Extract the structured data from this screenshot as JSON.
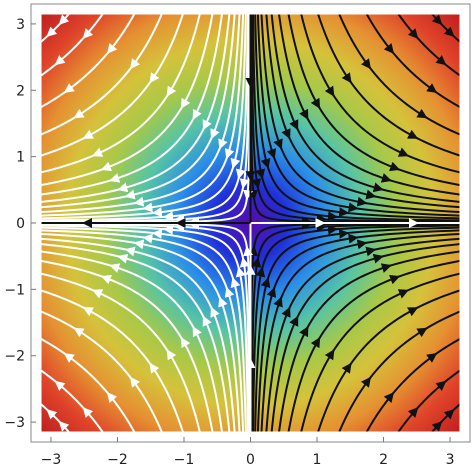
{
  "chart_data": {
    "type": "stream-density",
    "field": "v = (x, -y)",
    "density": "sqrt(x^2 + y^2)",
    "xlim": [
      -3.3,
      3.3
    ],
    "ylim": [
      -3.3,
      3.3
    ],
    "region": [
      -3.14159,
      3.14159
    ],
    "x_ticks": [
      -3,
      -2,
      -1,
      0,
      1,
      2,
      3
    ],
    "y_ticks": [
      -3,
      -2,
      -1,
      0,
      1,
      2,
      3
    ],
    "x_tick_labels": [
      "−3",
      "−2",
      "−1",
      "0",
      "1",
      "2",
      "3"
    ],
    "y_tick_labels": [
      "−3",
      "−2",
      "−1",
      "0",
      "1",
      "2",
      "3"
    ],
    "title": "",
    "xlabel": "",
    "ylabel": "",
    "grid": false,
    "colormap": [
      "#5a0aa8",
      "#2030d8",
      "#2a8de8",
      "#56c4a6",
      "#a7c948",
      "#d6c23b",
      "#e59232",
      "#e0452a",
      "#c11f1f"
    ],
    "stream_colors": [
      "#111111",
      "#ffffff"
    ]
  }
}
